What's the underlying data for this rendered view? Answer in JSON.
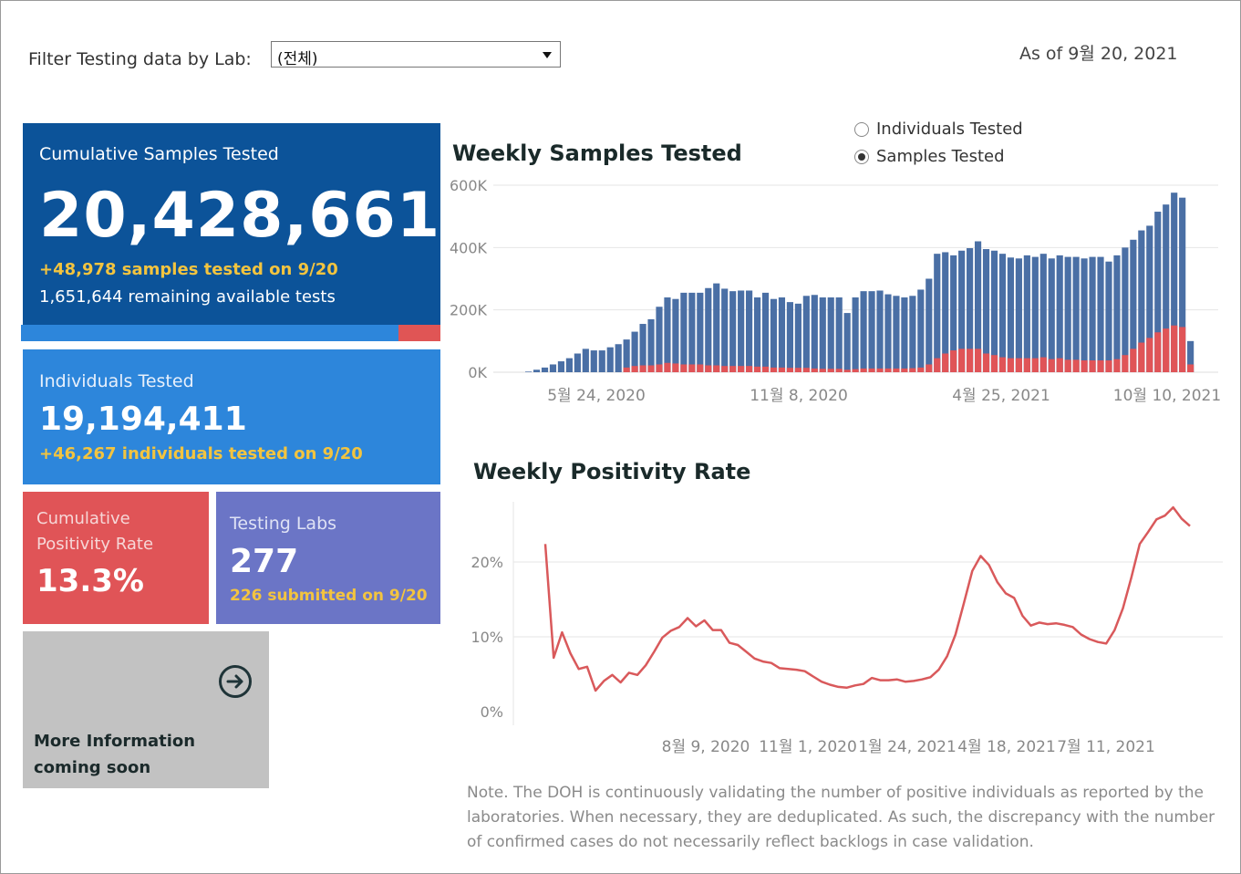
{
  "filter": {
    "label": "Filter Testing data by Lab:",
    "selected": "(전체)"
  },
  "as_of": "As of 9월 20, 2021",
  "cards": {
    "cumulative_samples": {
      "title": "Cumulative Samples Tested",
      "value": "20,428,661",
      "delta": "+48,978 samples tested on 9/20",
      "remaining": "1,651,644 remaining available tests",
      "used_fraction": 0.9
    },
    "individuals": {
      "title": "Individuals Tested",
      "value": "19,194,411",
      "delta": "+46,267  individuals  tested on 9/20"
    },
    "positivity": {
      "title": "Cumulative Positivity Rate",
      "value": "13.3%"
    },
    "labs": {
      "title": "Testing Labs",
      "value": "277",
      "sub": "226 submitted on 9/20"
    },
    "more": {
      "label": "More Information coming soon",
      "icon": "arrow-right-circle-icon"
    }
  },
  "toggle": {
    "options": [
      {
        "label": "Individuals Tested",
        "selected": false
      },
      {
        "label": "Samples Tested",
        "selected": true
      }
    ]
  },
  "colors": {
    "samples": "#4a6fa5",
    "positive": "#e05457",
    "line": "#d9595b"
  },
  "note": "Note. The DOH is continuously validating the number of positive individuals as reported by the laboratories. When necessary, they are deduplicated. As such, the discrepancy with the number of confirmed cases do not necessarily reflect backlogs in case validation.",
  "chart_data": [
    {
      "type": "bar",
      "title": "Weekly Samples Tested",
      "yticks": [
        "0K",
        "200K",
        "400K",
        "600K"
      ],
      "ylim": [
        0,
        600000
      ],
      "xticks": [
        "5월 24, 2020",
        "11월 8, 2020",
        "4월 25, 2021",
        "10월 10, 2021"
      ],
      "series": [
        {
          "values": [
            2000,
            8000,
            15000,
            25000,
            35000,
            45000,
            60000,
            75000,
            70000,
            70000,
            80000,
            90000,
            105000,
            130000,
            155000,
            170000,
            210000,
            240000,
            235000,
            255000,
            255000,
            255000,
            270000,
            285000,
            268000,
            260000,
            262000,
            262000,
            240000,
            255000,
            235000,
            240000,
            225000,
            220000,
            245000,
            248000,
            240000,
            240000,
            240000,
            190000,
            240000,
            260000,
            260000,
            262000,
            250000,
            245000,
            240000,
            245000,
            265000,
            300000,
            380000,
            385000,
            375000,
            390000,
            398000,
            420000,
            395000,
            390000,
            380000,
            368000,
            365000,
            375000,
            370000,
            380000,
            365000,
            375000,
            370000,
            370000,
            365000,
            370000,
            370000,
            355000,
            375000,
            400000,
            425000,
            455000,
            470000,
            515000,
            538000,
            576000,
            560000,
            100000
          ]
        },
        {
          "values": [
            0,
            0,
            0,
            0,
            0,
            0,
            0,
            0,
            0,
            0,
            0,
            0,
            15000,
            20000,
            22000,
            22000,
            25000,
            30000,
            28000,
            25000,
            25000,
            25000,
            22000,
            22000,
            20000,
            20000,
            20000,
            20000,
            18000,
            18000,
            15000,
            15000,
            14000,
            14000,
            14000,
            12000,
            11000,
            11000,
            11000,
            8000,
            10000,
            12000,
            12000,
            12000,
            12000,
            12000,
            12000,
            13000,
            15000,
            25000,
            45000,
            60000,
            70000,
            75000,
            75000,
            75000,
            60000,
            55000,
            48000,
            45000,
            45000,
            45000,
            45000,
            48000,
            42000,
            45000,
            40000,
            40000,
            38000,
            38000,
            38000,
            38000,
            42000,
            55000,
            75000,
            95000,
            110000,
            128000,
            140000,
            150000,
            145000,
            25000
          ]
        }
      ]
    },
    {
      "type": "line",
      "title": "Weekly Positivity Rate",
      "yticks": [
        "0%",
        "10%",
        "20%"
      ],
      "ylim": [
        0,
        28
      ],
      "xticks": [
        "8월 9, 2020",
        "11월 1, 2020",
        "1월 24, 2021",
        "4월 18, 2021",
        "7월 11, 2021"
      ],
      "series": [
        {
          "values": [
            22.4,
            7.2,
            10.6,
            7.8,
            5.7,
            6.0,
            2.8,
            4.1,
            4.9,
            3.9,
            5.2,
            4.9,
            6.2,
            8.0,
            9.9,
            10.8,
            11.3,
            12.5,
            11.4,
            12.2,
            10.9,
            10.9,
            9.2,
            8.9,
            8.0,
            7.1,
            6.7,
            6.5,
            5.8,
            5.7,
            5.6,
            5.4,
            4.7,
            4.0,
            3.6,
            3.3,
            3.2,
            3.5,
            3.7,
            4.5,
            4.2,
            4.2,
            4.3,
            4.0,
            4.1,
            4.3,
            4.6,
            5.6,
            7.4,
            10.3,
            14.5,
            18.8,
            20.8,
            19.6,
            17.3,
            15.8,
            15.2,
            12.8,
            11.5,
            11.9,
            11.7,
            11.8,
            11.6,
            11.3,
            10.3,
            9.7,
            9.3,
            9.1,
            10.9,
            13.8,
            17.9,
            22.4,
            24.0,
            25.7,
            26.2,
            27.3,
            25.8,
            24.8
          ]
        }
      ]
    }
  ]
}
